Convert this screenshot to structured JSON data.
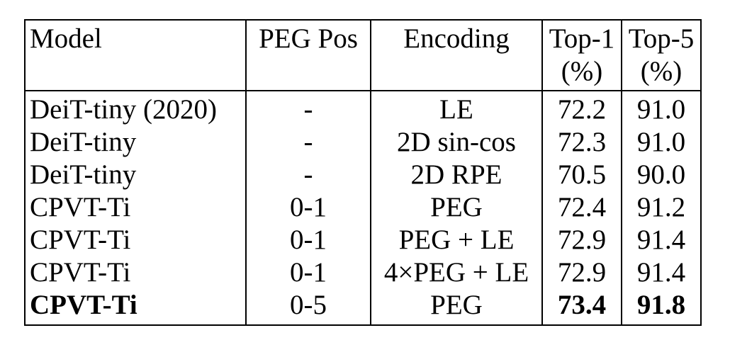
{
  "header": {
    "model": "Model",
    "peg_pos": "PEG Pos",
    "encoding": "Encoding",
    "top1_line1": "Top-1",
    "top1_line2": "(%)",
    "top5_line1": "Top-5",
    "top5_line2": "(%)"
  },
  "rows": [
    {
      "model": "DeiT-tiny (2020)",
      "peg_pos": "-",
      "encoding": "LE",
      "top1": "72.2",
      "top5": "91.0"
    },
    {
      "model": "DeiT-tiny",
      "peg_pos": "-",
      "encoding": "2D sin-cos",
      "top1": "72.3",
      "top5": "91.0"
    },
    {
      "model": "DeiT-tiny",
      "peg_pos": "-",
      "encoding": "2D RPE",
      "top1": "70.5",
      "top5": "90.0"
    },
    {
      "model": "CPVT-Ti",
      "peg_pos": "0-1",
      "encoding": "PEG",
      "top1": "72.4",
      "top5": "91.2"
    },
    {
      "model": "CPVT-Ti",
      "peg_pos": "0-1",
      "encoding": "PEG + LE",
      "top1": "72.9",
      "top5": "91.4"
    },
    {
      "model": "CPVT-Ti",
      "peg_pos": "0-1",
      "encoding": "4×PEG + LE",
      "top1": "72.9",
      "top5": "91.4"
    },
    {
      "model": "CPVT-Ti",
      "peg_pos": "0-5",
      "encoding": "PEG",
      "top1": "73.4",
      "top5": "91.8"
    }
  ]
}
